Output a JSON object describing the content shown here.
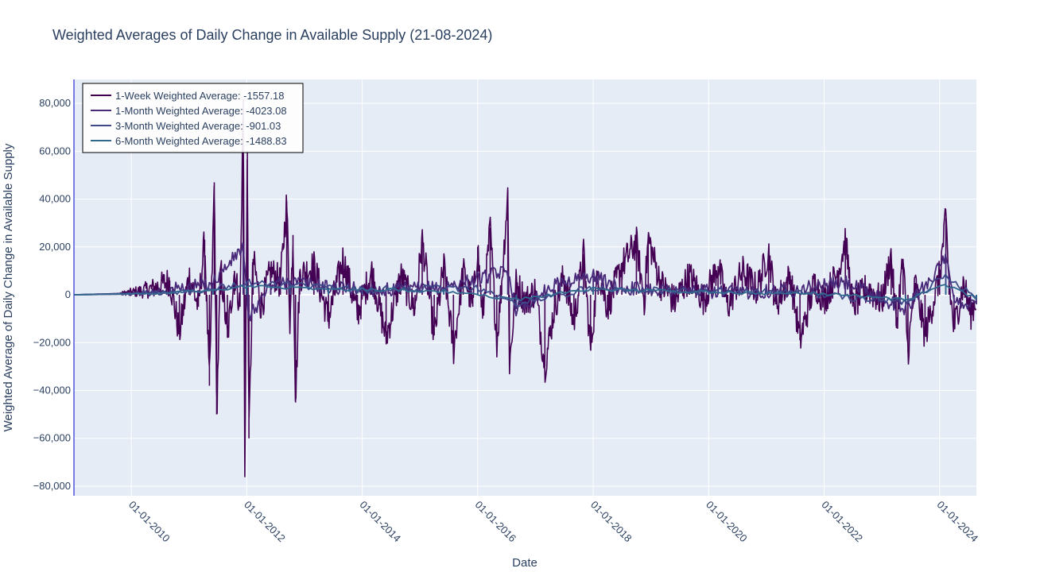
{
  "chart_data": {
    "type": "line",
    "title": "Weighted Averages of Daily Change in Available Supply (21-08-2024)",
    "xlabel": "Date",
    "ylabel": "Weighted Average of Daily Change in Available Supply",
    "x_range": [
      "2009-01-03",
      "2024-08-21"
    ],
    "ylim": [
      -84000,
      90000
    ],
    "x_ticks": [
      "01-01-2010",
      "01-01-2012",
      "01-01-2014",
      "01-01-2016",
      "01-01-2018",
      "01-01-2020",
      "01-01-2022",
      "01-01-2024"
    ],
    "y_ticks": [
      -80000,
      -60000,
      -40000,
      -20000,
      0,
      20000,
      40000,
      60000,
      80000
    ],
    "y_tick_labels": [
      "−80,000",
      "−60,000",
      "−40,000",
      "−20,000",
      "0",
      "20,000",
      "40,000",
      "60,000",
      "80,000"
    ],
    "grid": true,
    "legend_position": "top-left",
    "series": [
      {
        "name": "1-Week Weighted Average: -1557.18",
        "color": "#440154",
        "points": [
          [
            "2009-01-03",
            0
          ],
          [
            "2009-06-01",
            300
          ],
          [
            "2009-10-01",
            500
          ],
          [
            "2010-03-01",
            1500
          ],
          [
            "2010-06-01",
            3000
          ],
          [
            "2010-09-01",
            6000
          ],
          [
            "2010-11-01",
            -16000
          ],
          [
            "2011-01-01",
            8000
          ],
          [
            "2011-03-01",
            -5000
          ],
          [
            "2011-04-10",
            23000
          ],
          [
            "2011-05-10",
            -38000
          ],
          [
            "2011-06-10",
            47000
          ],
          [
            "2011-06-25",
            -50000
          ],
          [
            "2011-07-20",
            12000
          ],
          [
            "2011-09-01",
            -18000
          ],
          [
            "2011-10-15",
            10000
          ],
          [
            "2011-11-20",
            -5000
          ],
          [
            "2011-12-10",
            82000
          ],
          [
            "2011-12-20",
            -75000
          ],
          [
            "2012-01-05",
            60000
          ],
          [
            "2012-01-15",
            -60000
          ],
          [
            "2012-02-10",
            15000
          ],
          [
            "2012-04-01",
            -5000
          ],
          [
            "2012-06-01",
            10000
          ],
          [
            "2012-08-01",
            5000
          ],
          [
            "2012-09-10",
            39000
          ],
          [
            "2012-10-01",
            -12000
          ],
          [
            "2012-10-20",
            25000
          ],
          [
            "2012-11-05",
            -45000
          ],
          [
            "2012-12-01",
            8000
          ],
          [
            "2013-03-01",
            12000
          ],
          [
            "2013-06-01",
            -10000
          ],
          [
            "2013-09-01",
            15000
          ],
          [
            "2013-12-01",
            -8000
          ],
          [
            "2014-03-01",
            10000
          ],
          [
            "2014-06-01",
            -18000
          ],
          [
            "2014-09-01",
            8000
          ],
          [
            "2014-12-01",
            -6000
          ],
          [
            "2015-01-15",
            23000
          ],
          [
            "2015-04-01",
            -17000
          ],
          [
            "2015-06-01",
            12000
          ],
          [
            "2015-08-01",
            -23000
          ],
          [
            "2015-10-01",
            10000
          ],
          [
            "2015-12-01",
            -5000
          ],
          [
            "2016-01-01",
            20000
          ],
          [
            "2016-02-01",
            -10000
          ],
          [
            "2016-03-20",
            28000
          ],
          [
            "2016-05-01",
            -20000
          ],
          [
            "2016-06-01",
            5000
          ],
          [
            "2016-07-10",
            43000
          ],
          [
            "2016-07-20",
            -30000
          ],
          [
            "2016-09-01",
            5000
          ],
          [
            "2016-11-01",
            -3000
          ],
          [
            "2017-01-01",
            2000
          ],
          [
            "2017-03-01",
            -30000
          ],
          [
            "2017-05-01",
            -5000
          ],
          [
            "2017-07-01",
            8000
          ],
          [
            "2017-09-01",
            -12000
          ],
          [
            "2017-11-01",
            17000
          ],
          [
            "2017-12-15",
            -23000
          ],
          [
            "2018-02-01",
            10000
          ],
          [
            "2018-04-01",
            -5000
          ],
          [
            "2018-07-01",
            12000
          ],
          [
            "2018-10-01",
            22000
          ],
          [
            "2018-11-20",
            -3000
          ],
          [
            "2018-12-15",
            24000
          ],
          [
            "2019-03-01",
            5000
          ],
          [
            "2019-06-01",
            -3000
          ],
          [
            "2019-09-01",
            8000
          ],
          [
            "2019-12-01",
            -2000
          ],
          [
            "2020-03-01",
            12000
          ],
          [
            "2020-05-01",
            -5000
          ],
          [
            "2020-08-01",
            10000
          ],
          [
            "2020-11-01",
            2000
          ],
          [
            "2021-01-15",
            18000
          ],
          [
            "2021-03-01",
            -4000
          ],
          [
            "2021-06-01",
            8000
          ],
          [
            "2021-08-01",
            -19000
          ],
          [
            "2021-11-01",
            5000
          ],
          [
            "2022-01-01",
            -2000
          ],
          [
            "2022-04-01",
            10000
          ],
          [
            "2022-05-15",
            23000
          ],
          [
            "2022-07-01",
            -5000
          ],
          [
            "2022-10-01",
            3000
          ],
          [
            "2023-01-01",
            -3000
          ],
          [
            "2023-03-01",
            17000
          ],
          [
            "2023-04-01",
            -13000
          ],
          [
            "2023-05-15",
            15000
          ],
          [
            "2023-06-15",
            -24000
          ],
          [
            "2023-08-01",
            5000
          ],
          [
            "2023-10-01",
            -17000
          ],
          [
            "2024-01-01",
            8000
          ],
          [
            "2024-02-10",
            32000
          ],
          [
            "2024-03-01",
            5000
          ],
          [
            "2024-04-01",
            -14000
          ],
          [
            "2024-06-01",
            5000
          ],
          [
            "2024-07-15",
            -8000
          ],
          [
            "2024-08-21",
            -1557.18
          ]
        ]
      },
      {
        "name": "1-Month Weighted Average: -4023.08",
        "color": "#482878",
        "points": [
          [
            "2009-01-03",
            0
          ],
          [
            "2010-01-01",
            300
          ],
          [
            "2010-06-01",
            1500
          ],
          [
            "2011-01-01",
            3000
          ],
          [
            "2011-06-01",
            5000
          ],
          [
            "2011-12-10",
            20000
          ],
          [
            "2012-01-10",
            -10000
          ],
          [
            "2012-06-01",
            4000
          ],
          [
            "2012-10-01",
            6000
          ],
          [
            "2013-06-01",
            3000
          ],
          [
            "2014-06-01",
            2000
          ],
          [
            "2015-06-01",
            3000
          ],
          [
            "2016-07-10",
            10000
          ],
          [
            "2016-09-01",
            -6000
          ],
          [
            "2017-06-01",
            5000
          ],
          [
            "2018-01-01",
            8000
          ],
          [
            "2018-06-01",
            3000
          ],
          [
            "2019-06-01",
            2000
          ],
          [
            "2020-06-01",
            1000
          ],
          [
            "2021-06-01",
            2000
          ],
          [
            "2022-05-15",
            5000
          ],
          [
            "2023-06-01",
            -6000
          ],
          [
            "2024-02-10",
            15000
          ],
          [
            "2024-04-01",
            -3000
          ],
          [
            "2024-08-21",
            -4023.08
          ]
        ]
      },
      {
        "name": "3-Month Weighted Average: -901.03",
        "color": "#3e4989",
        "points": [
          [
            "2009-01-03",
            0
          ],
          [
            "2010-06-01",
            800
          ],
          [
            "2011-06-01",
            2500
          ],
          [
            "2012-01-01",
            5000
          ],
          [
            "2012-10-01",
            4000
          ],
          [
            "2014-01-01",
            2000
          ],
          [
            "2016-01-01",
            3000
          ],
          [
            "2016-09-01",
            -4000
          ],
          [
            "2018-01-01",
            3000
          ],
          [
            "2019-06-01",
            1500
          ],
          [
            "2021-06-01",
            1000
          ],
          [
            "2023-06-01",
            -3000
          ],
          [
            "2024-02-10",
            8000
          ],
          [
            "2024-08-21",
            -901.03
          ]
        ]
      },
      {
        "name": "6-Month Weighted Average: -1488.83",
        "color": "#31688e",
        "points": [
          [
            "2009-01-03",
            0
          ],
          [
            "2010-06-01",
            500
          ],
          [
            "2011-06-01",
            2000
          ],
          [
            "2012-01-01",
            3500
          ],
          [
            "2013-06-01",
            2500
          ],
          [
            "2015-06-01",
            1500
          ],
          [
            "2016-09-01",
            -2000
          ],
          [
            "2018-01-01",
            2500
          ],
          [
            "2020-01-01",
            1000
          ],
          [
            "2022-01-01",
            500
          ],
          [
            "2023-06-01",
            -2000
          ],
          [
            "2024-02-10",
            4000
          ],
          [
            "2024-08-21",
            -1488.83
          ]
        ]
      }
    ]
  }
}
